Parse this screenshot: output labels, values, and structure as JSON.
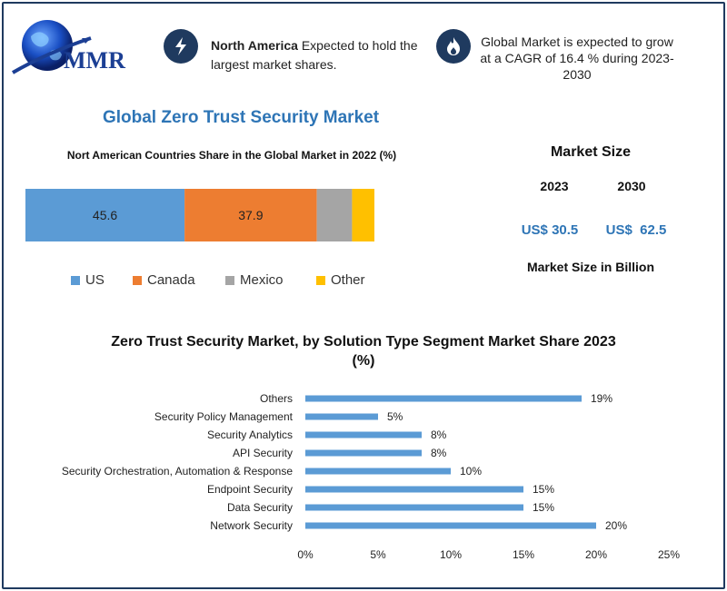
{
  "header": {
    "logo_text": "MMR",
    "na_bold": "North America",
    "na_rest": "Expected to hold the largest market shares.",
    "cagr_text": "Global Market is expected to grow at a CAGR of 16.4 % during 2023-2030",
    "icons": [
      "lightning-bolt-icon",
      "flame-icon",
      "globe-icon"
    ]
  },
  "left": {
    "title": "Global Zero Trust Security Market",
    "stack_title": "Nort American Countries Share in the Global Market in 2022 (%)"
  },
  "market_size": {
    "title": "Market Size",
    "year_a": "2023",
    "year_b": "2030",
    "value_a": "US$ 30.5",
    "value_b": "US$  62.5",
    "unit": "Market Size in Billion"
  },
  "bar_section": {
    "title": "Zero Trust Security Market, by Solution Type Segment Market Share 2023 (%)"
  },
  "chart_data": [
    {
      "type": "bar",
      "orientation": "horizontal-stacked",
      "title": "Nort American Countries Share in the Global Market in 2022 (%)",
      "series": [
        {
          "name": "US",
          "value": 45.6,
          "label": "45.6",
          "color": "#5b9bd5"
        },
        {
          "name": "Canada",
          "value": 37.9,
          "label": "37.9",
          "color": "#ed7d31"
        },
        {
          "name": "Mexico",
          "value": 10.1,
          "label": "",
          "color": "#a5a5a5"
        },
        {
          "name": "Other",
          "value": 6.4,
          "label": "",
          "color": "#ffc000"
        }
      ],
      "legend": "bottom"
    },
    {
      "type": "bar",
      "orientation": "horizontal",
      "title": "Zero Trust Security Market, by Solution Type Segment Market Share 2023 (%)",
      "categories": [
        "Others",
        "Security Policy Management",
        "Security Analytics",
        "API Security",
        "Security Orchestration, Automation & Response",
        "Endpoint Security",
        "Data Security",
        "Network Security"
      ],
      "values": [
        19,
        5,
        8,
        8,
        10,
        15,
        15,
        20
      ],
      "value_labels": [
        "19%",
        "5%",
        "8%",
        "8%",
        "10%",
        "15%",
        "15%",
        "20%"
      ],
      "xlim": [
        0,
        25
      ],
      "xticks": [
        "0%",
        "5%",
        "10%",
        "15%",
        "20%",
        "25%"
      ],
      "color": "#5b9bd5",
      "grid": false
    }
  ]
}
